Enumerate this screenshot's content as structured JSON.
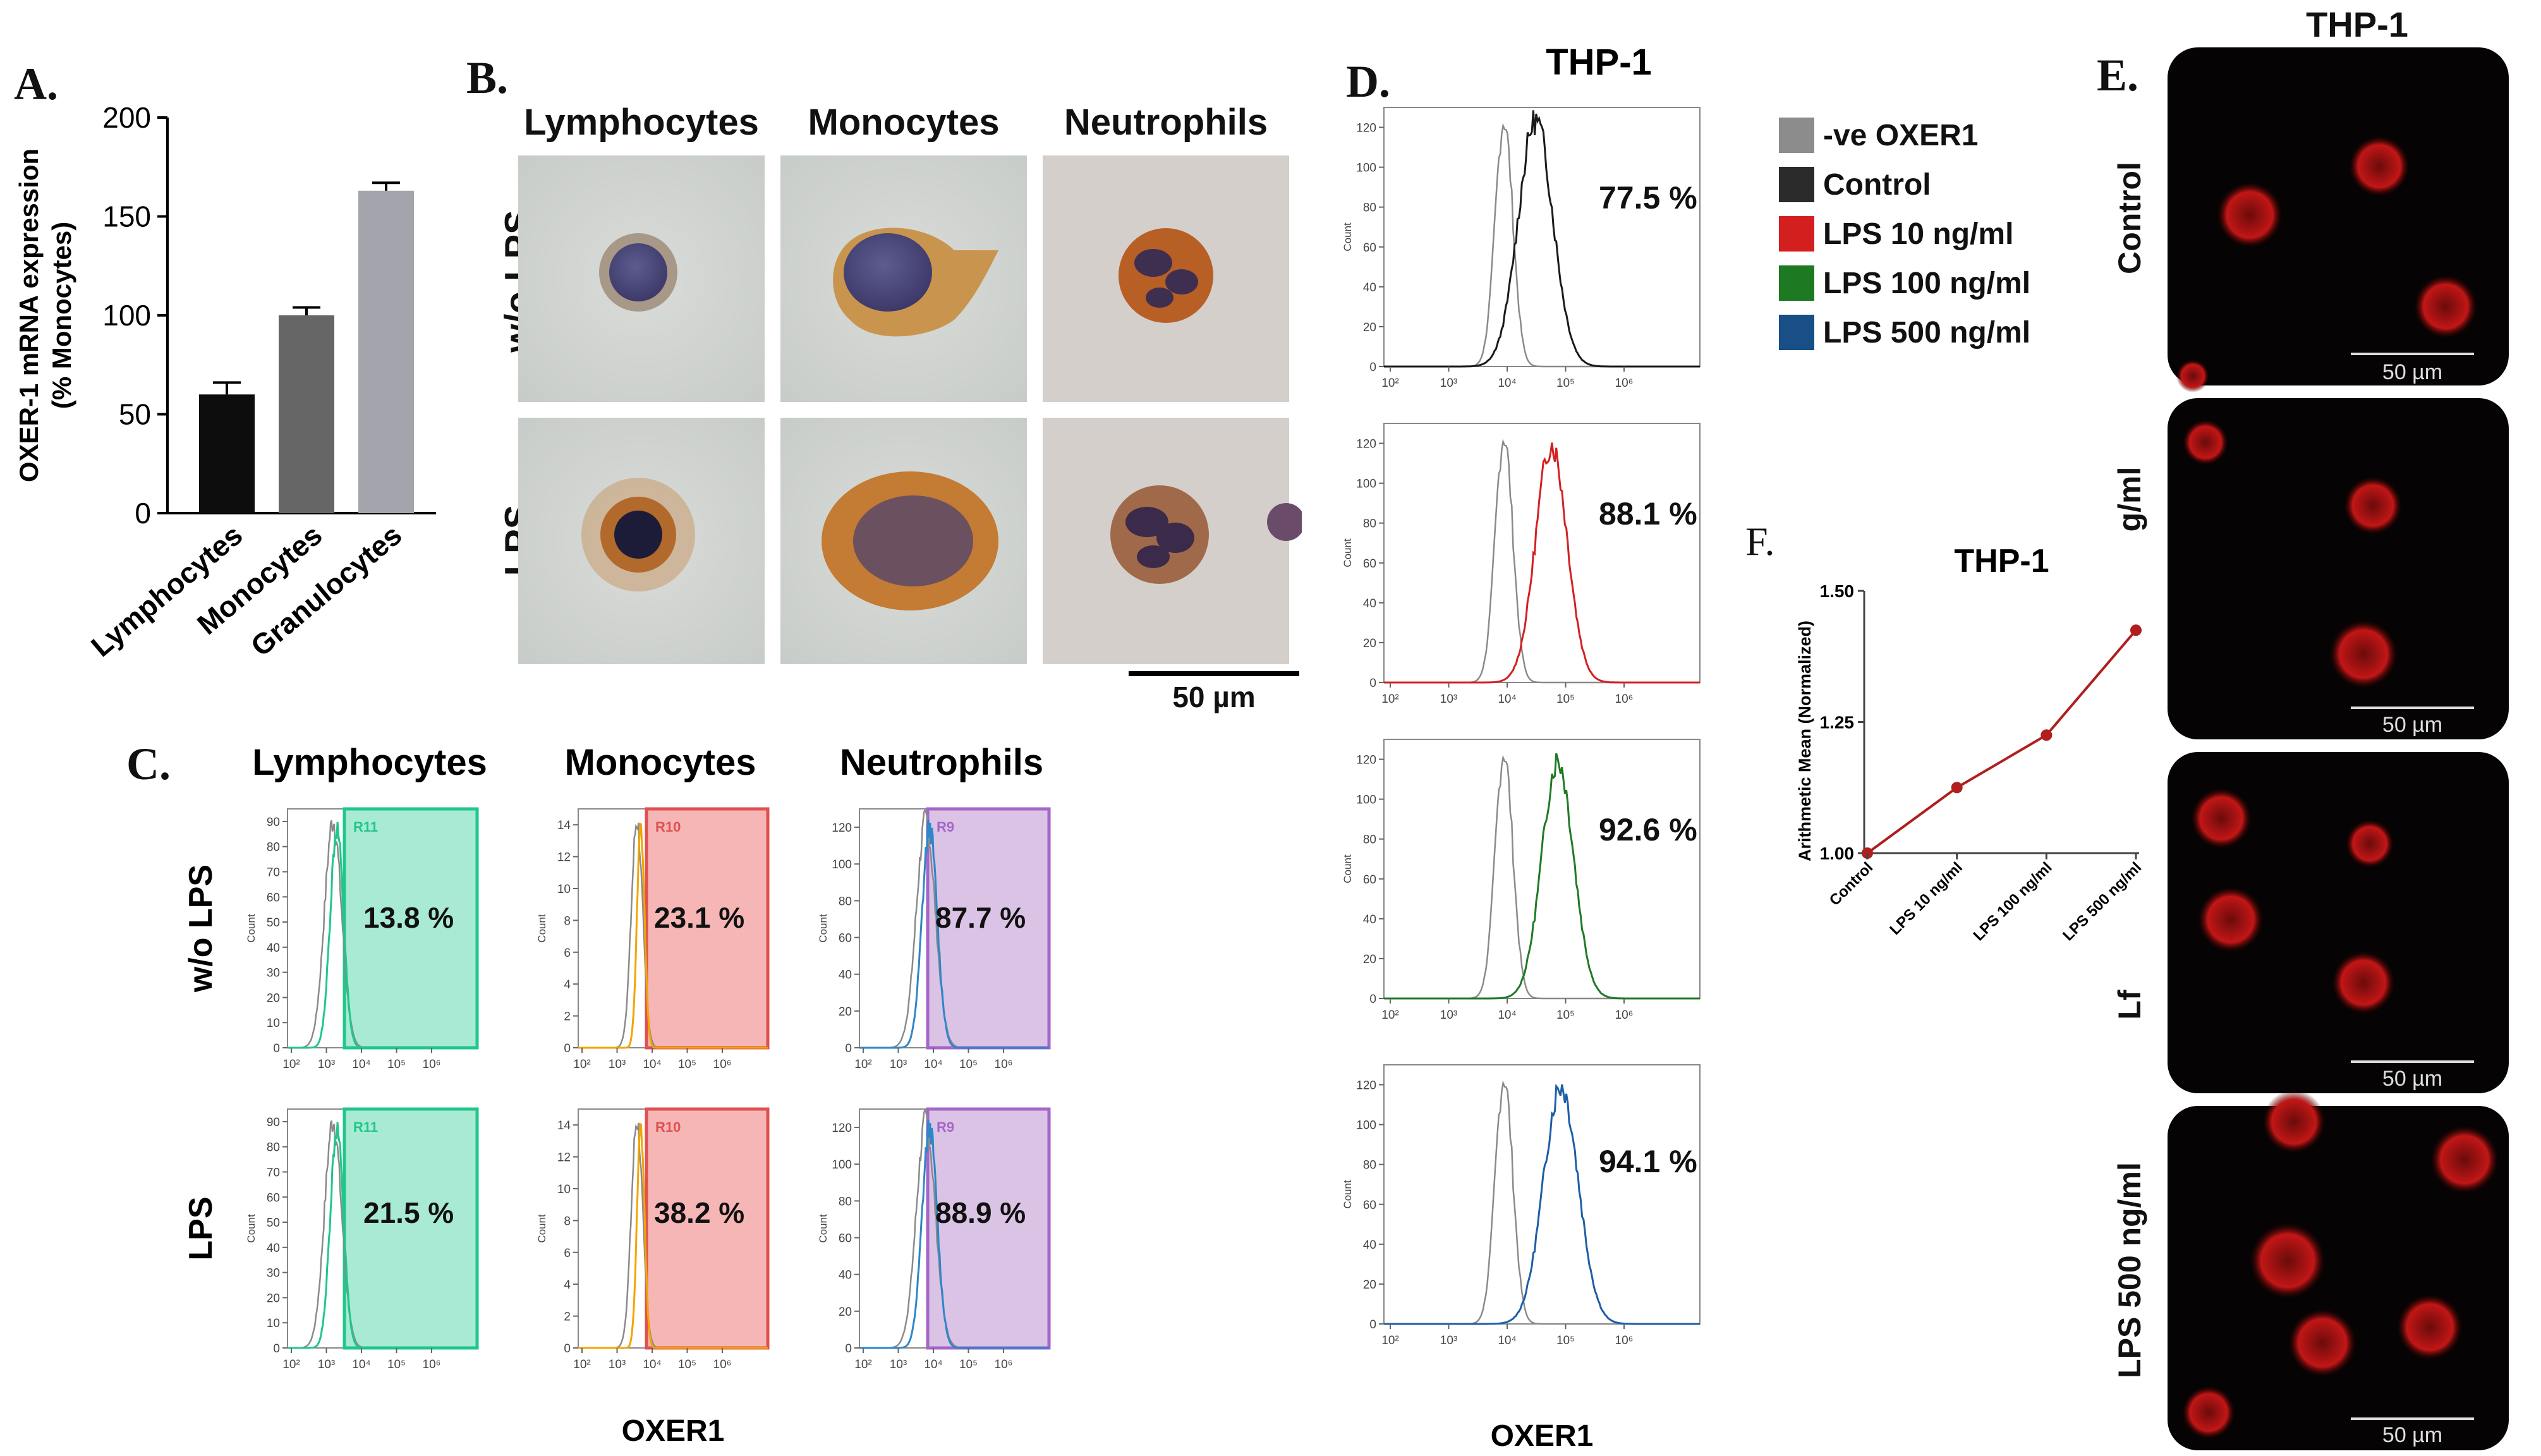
{
  "panel_labels": {
    "A": "A.",
    "B": "B.",
    "C": "C.",
    "D": "D.",
    "E": "E.",
    "F": "F."
  },
  "colors": {
    "ctrl": "#1a1a1a",
    "neg": "#9a9a9a",
    "lps10": "#d42020",
    "lps100": "#1f7a25",
    "lps500": "#1d5ea8",
    "lymph": "#1fc78a",
    "mono": "#f2a500",
    "neut": "#2f86c9"
  },
  "panelA": {
    "chart_data": {
      "type": "bar",
      "categories": [
        "Lymphocytes",
        "Monocytes",
        "Granulocytes"
      ],
      "values": [
        60,
        100,
        163
      ],
      "errors": [
        6,
        4,
        4
      ],
      "colors": [
        "#0d0d0d",
        "#666666",
        "#a4a4ad"
      ],
      "ylabel": "OXER-1 mRNA expression (% Monocytes)",
      "ylabel_line1": "OXER-1 mRNA expression",
      "ylabel_line2": "(% Monocytes)",
      "ylim": [
        0,
        200
      ],
      "yticks": [
        0,
        50,
        100,
        150,
        200
      ],
      "ytick_labels": [
        "0",
        "50",
        "100",
        "150",
        "200"
      ]
    }
  },
  "panelB": {
    "columns": [
      "Lymphocytes",
      "Monocytes",
      "Neutrophils"
    ],
    "rows": [
      "w/o LPS",
      "LPS"
    ],
    "scalebar": "50 µm"
  },
  "panelC": {
    "columns": [
      "Lymphocytes",
      "Monocytes",
      "Neutrophils"
    ],
    "rows": [
      "w/o LPS",
      "LPS"
    ],
    "gates": [
      "R11",
      "R10",
      "R9"
    ],
    "percents": [
      [
        "13.8 %",
        "23.1 %",
        "87.7 %"
      ],
      [
        "21.5 %",
        "38.2 %",
        "88.9 %"
      ]
    ],
    "yticks": [
      [
        "0",
        "10",
        "20",
        "30",
        "40",
        "50",
        "60",
        "70",
        "80",
        "90"
      ],
      [
        "0",
        "2",
        "4",
        "6",
        "8",
        "10",
        "12",
        "14"
      ],
      [
        "0",
        "20",
        "40",
        "60",
        "80",
        "100",
        "120"
      ]
    ],
    "ylabel": "Count",
    "xticks": [
      "10²",
      "10³",
      "10⁴",
      "10⁵",
      "10⁶"
    ],
    "xlabel": "OXER1"
  },
  "panelD": {
    "title": "THP-1",
    "percents": [
      "77.5 %",
      "88.1 %",
      "92.6 %",
      "94.1 %"
    ],
    "yticks": [
      "0",
      "20",
      "40",
      "60",
      "80",
      "100",
      "120"
    ],
    "ylabel": "Count",
    "xticks": [
      "10²",
      "10³",
      "10⁴",
      "10⁵",
      "10⁶"
    ],
    "xlabel": "OXER1",
    "legend": [
      {
        "label": "-ve OXER1",
        "color": "#8c8c8c"
      },
      {
        "label": "Control",
        "color": "#2b2b2b"
      },
      {
        "label": "LPS 10 ng/ml",
        "color": "#d41f1f"
      },
      {
        "label": "LPS 100 ng/ml",
        "color": "#1d7a22"
      },
      {
        "label": "LPS 500 ng/ml",
        "color": "#174f86"
      }
    ]
  },
  "panelE": {
    "title": "THP-1",
    "rows": [
      "Control",
      "g/ml",
      "Lf",
      "LPS 500 ng/ml"
    ],
    "scalebar": "50 µm"
  },
  "panelF": {
    "chart_data": {
      "type": "line",
      "title": "THP-1",
      "categories": [
        "Control",
        "LPS 10 ng/ml",
        "LPS 100 ng/ml",
        "LPS 500 ng/ml"
      ],
      "values": [
        1.0,
        1.125,
        1.225,
        1.425
      ],
      "ylabel": "Arithmetic Mean (Normalized)",
      "ylim": [
        1.0,
        1.5
      ],
      "yticks": [
        1.0,
        1.25,
        1.5
      ],
      "ytick_labels": [
        "1.00",
        "1.25",
        "1.50"
      ],
      "color": "#b01e1e"
    }
  }
}
